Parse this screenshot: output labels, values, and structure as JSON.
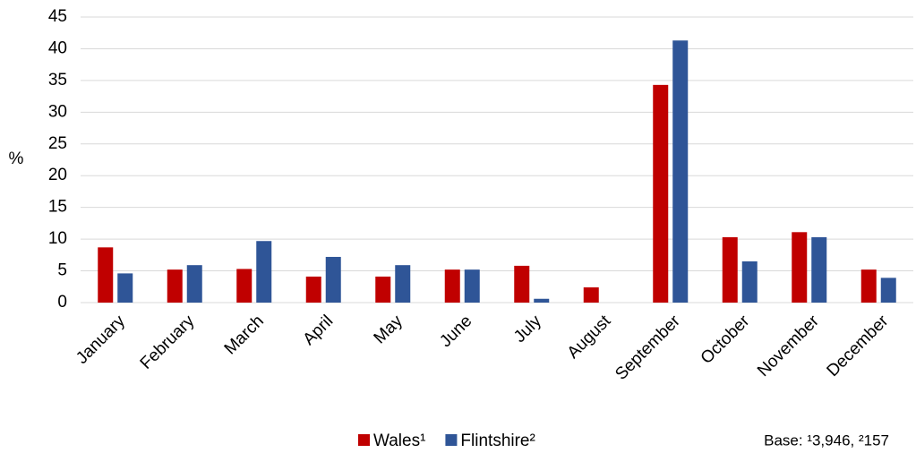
{
  "chart_data": {
    "type": "bar",
    "y_label": "%",
    "note": "Base: ¹3,946, ²157",
    "categories": [
      "January",
      "February",
      "March",
      "April",
      "May",
      "June",
      "July",
      "August",
      "September",
      "October",
      "November",
      "December"
    ],
    "series": [
      {
        "name": "Wales¹",
        "color": "#c00000",
        "values": [
          8.7,
          5.2,
          5.3,
          4.1,
          4.1,
          5.2,
          5.8,
          2.4,
          34.3,
          10.3,
          11.1,
          5.2
        ]
      },
      {
        "name": "Flintshire²",
        "color": "#2f5597",
        "values": [
          4.6,
          5.9,
          9.7,
          7.2,
          5.9,
          5.2,
          0.6,
          0,
          41.3,
          6.5,
          10.3,
          3.9
        ]
      }
    ],
    "ylim": [
      0,
      45
    ],
    "yticks": [
      0,
      5,
      10,
      15,
      20,
      25,
      30,
      35,
      40,
      45
    ],
    "grid": true,
    "legend": "bottom"
  }
}
